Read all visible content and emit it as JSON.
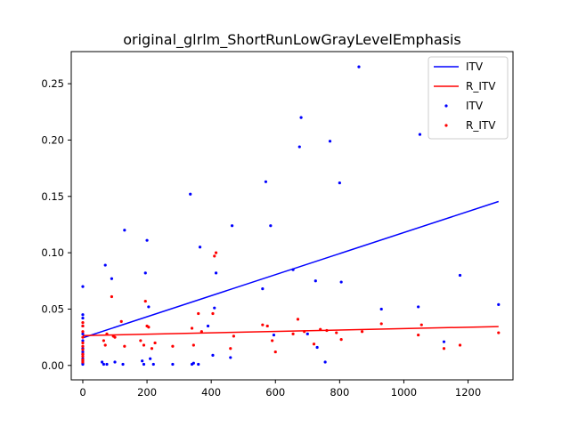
{
  "chart_data": {
    "type": "scatter",
    "title": "original_glrlm_ShortRunLowGrayLevelEmphasis",
    "xlabel": "",
    "ylabel": "",
    "xlim": [
      -36,
      1340
    ],
    "ylim": [
      -0.0128,
      0.2785
    ],
    "xticks": [
      0,
      200,
      400,
      600,
      800,
      1000,
      1200
    ],
    "yticks": [
      0.0,
      0.05,
      0.1,
      0.15,
      0.2,
      0.25
    ],
    "ytick_labels": [
      "0.00",
      "0.05",
      "0.10",
      "0.15",
      "0.20",
      "0.25"
    ],
    "legend": {
      "position": "top-right",
      "entries": [
        {
          "label": "ITV",
          "kind": "line",
          "color": "#0000ff"
        },
        {
          "label": "R_ITV",
          "kind": "line",
          "color": "#ff0000"
        },
        {
          "label": "ITV",
          "kind": "points",
          "color": "#0000ff"
        },
        {
          "label": "R_ITV",
          "kind": "points",
          "color": "#ff0000"
        }
      ]
    },
    "series": [
      {
        "name": "ITV",
        "kind": "line",
        "color": "#0000ff",
        "x": [
          0,
          1295
        ],
        "y": [
          0.0245,
          0.1455
        ]
      },
      {
        "name": "R_ITV",
        "kind": "line",
        "color": "#ff0000",
        "x": [
          0,
          1295
        ],
        "y": [
          0.0265,
          0.0345
        ]
      },
      {
        "name": "ITV",
        "kind": "points",
        "color": "#0000ff",
        "x": [
          0,
          0,
          0,
          0,
          0,
          0,
          0,
          0,
          0,
          0,
          0,
          0,
          0,
          60,
          65,
          70,
          75,
          90,
          100,
          125,
          130,
          185,
          190,
          195,
          200,
          205,
          210,
          220,
          280,
          335,
          340,
          345,
          360,
          365,
          390,
          405,
          410,
          415,
          460,
          465,
          560,
          570,
          585,
          595,
          655,
          675,
          680,
          700,
          725,
          730,
          755,
          770,
          800,
          805,
          860,
          930,
          1045,
          1050,
          1125,
          1175,
          1295
        ],
        "y": [
          0.07,
          0.045,
          0.042,
          0.035,
          0.028,
          0.022,
          0.015,
          0.012,
          0.01,
          0.006,
          0.004,
          0.002,
          0.001,
          0.003,
          0.001,
          0.089,
          0.001,
          0.077,
          0.003,
          0.001,
          0.12,
          0.004,
          0.001,
          0.082,
          0.111,
          0.052,
          0.006,
          0.001,
          0.001,
          0.152,
          0.001,
          0.002,
          0.001,
          0.105,
          0.035,
          0.009,
          0.051,
          0.082,
          0.007,
          0.124,
          0.068,
          0.163,
          0.124,
          0.027,
          0.085,
          0.194,
          0.22,
          0.028,
          0.075,
          0.016,
          0.003,
          0.199,
          0.162,
          0.074,
          0.265,
          0.05,
          0.052,
          0.205,
          0.021,
          0.08,
          0.054
        ]
      },
      {
        "name": "R_ITV",
        "kind": "points",
        "color": "#ff0000",
        "x": [
          0,
          0,
          0,
          0,
          0,
          0,
          0,
          0,
          0,
          0,
          0,
          65,
          70,
          75,
          90,
          95,
          100,
          120,
          130,
          180,
          190,
          195,
          200,
          205,
          215,
          225,
          280,
          340,
          345,
          360,
          370,
          405,
          410,
          415,
          460,
          470,
          560,
          575,
          590,
          600,
          655,
          670,
          690,
          720,
          740,
          760,
          790,
          805,
          870,
          930,
          1045,
          1055,
          1125,
          1175,
          1295
        ],
        "y": [
          0.038,
          0.035,
          0.03,
          0.025,
          0.02,
          0.017,
          0.014,
          0.01,
          0.008,
          0.005,
          0.003,
          0.022,
          0.018,
          0.028,
          0.061,
          0.026,
          0.025,
          0.039,
          0.017,
          0.022,
          0.018,
          0.057,
          0.035,
          0.034,
          0.015,
          0.02,
          0.017,
          0.033,
          0.018,
          0.046,
          0.03,
          0.046,
          0.097,
          0.1,
          0.015,
          0.026,
          0.036,
          0.035,
          0.022,
          0.012,
          0.028,
          0.041,
          0.03,
          0.019,
          0.032,
          0.031,
          0.029,
          0.023,
          0.03,
          0.037,
          0.027,
          0.036,
          0.015,
          0.018,
          0.029
        ]
      }
    ]
  }
}
